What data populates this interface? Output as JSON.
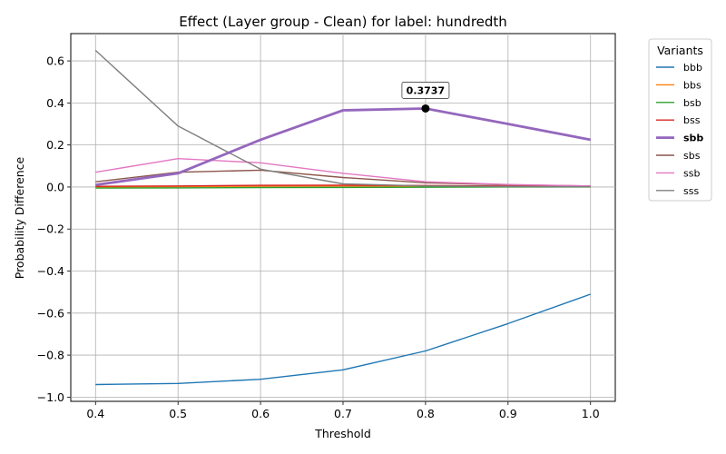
{
  "chart_data": {
    "type": "line",
    "title": "Effect (Layer group - Clean) for label: hundredth",
    "xlabel": "Threshold",
    "ylabel": "Probability Difference",
    "xlim": [
      0.37,
      1.03
    ],
    "ylim": [
      -1.02,
      0.73
    ],
    "x": [
      0.4,
      0.5,
      0.6,
      0.7,
      0.8,
      0.9,
      1.0
    ],
    "xticks": [
      "0.4",
      "0.5",
      "0.6",
      "0.7",
      "0.8",
      "0.9",
      "1.0"
    ],
    "yticks": [
      "−1.0",
      "−0.8",
      "−0.6",
      "−0.4",
      "−0.2",
      "0.0",
      "0.2",
      "0.4",
      "0.6"
    ],
    "ytick_values": [
      -1.0,
      -0.8,
      -0.6,
      -0.4,
      -0.2,
      0.0,
      0.2,
      0.4,
      0.6
    ],
    "grid": true,
    "legend_title": "Variants",
    "legend_position": "outside-right",
    "series": [
      {
        "name": "bbb",
        "color": "#1f77b4",
        "highlight": false,
        "values": [
          -0.94,
          -0.935,
          -0.915,
          -0.87,
          -0.78,
          -0.65,
          -0.51
        ]
      },
      {
        "name": "bbs",
        "color": "#ff7f0e",
        "highlight": false,
        "values": [
          0.0,
          0.002,
          0.004,
          0.005,
          0.004,
          0.003,
          0.002
        ]
      },
      {
        "name": "bsb",
        "color": "#2ca02c",
        "highlight": false,
        "values": [
          -0.005,
          -0.004,
          -0.003,
          -0.002,
          -0.001,
          0.0,
          0.0
        ]
      },
      {
        "name": "bss",
        "color": "#d62728",
        "highlight": false,
        "values": [
          0.003,
          0.005,
          0.008,
          0.009,
          0.007,
          0.005,
          0.003
        ]
      },
      {
        "name": "sbb",
        "color": "#9467bd",
        "highlight": true,
        "values": [
          0.01,
          0.065,
          0.225,
          0.365,
          0.3737,
          0.3,
          0.225
        ]
      },
      {
        "name": "sbs",
        "color": "#8c564b",
        "highlight": false,
        "values": [
          0.025,
          0.07,
          0.08,
          0.045,
          0.02,
          0.01,
          0.005
        ]
      },
      {
        "name": "ssb",
        "color": "#e377c2",
        "highlight": false,
        "values": [
          0.07,
          0.135,
          0.115,
          0.065,
          0.025,
          0.012,
          0.005
        ]
      },
      {
        "name": "sss",
        "color": "#7f7f7f",
        "highlight": false,
        "values": [
          0.65,
          0.29,
          0.085,
          0.015,
          0.005,
          0.002,
          0.001
        ]
      }
    ],
    "annotation": {
      "label": "0.3737",
      "x": 0.8,
      "y": 0.3737
    }
  }
}
